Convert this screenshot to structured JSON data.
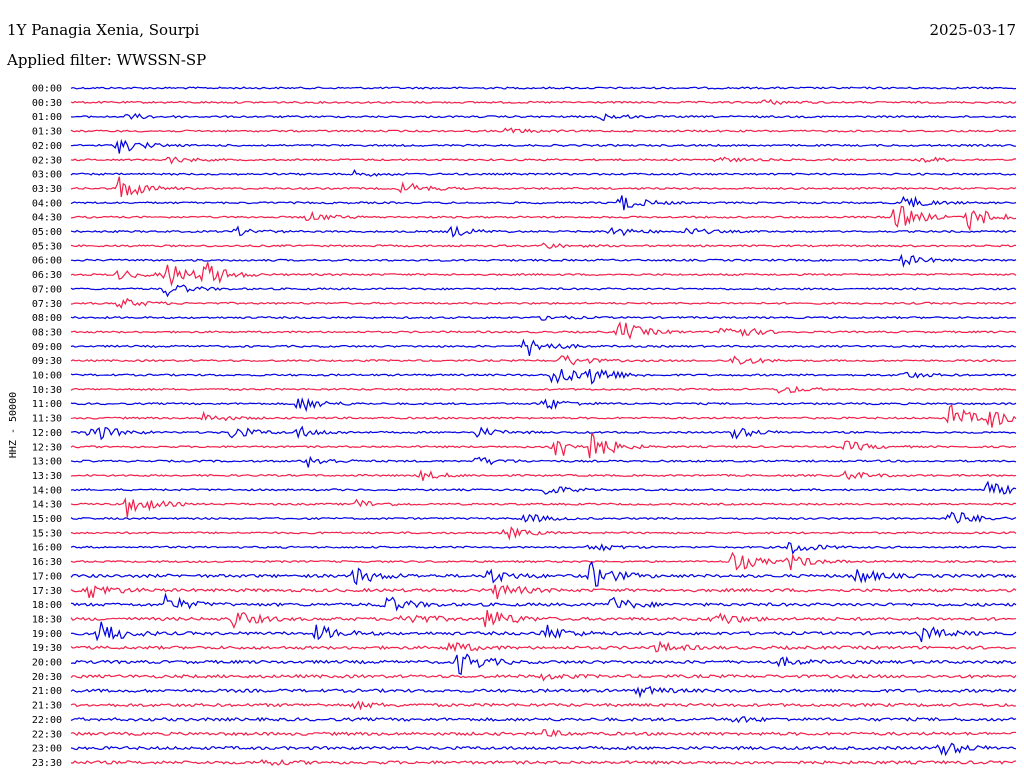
{
  "header": {
    "station": "1Y Panagia Xenia, Sourpi",
    "date": "2025-03-17",
    "filter": "Applied filter: WWSSN-SP"
  },
  "chart_data": {
    "type": "line",
    "ylabel": "HHZ - 50000",
    "colors": [
      "#0000e0",
      "#f0204a"
    ],
    "rows": [
      {
        "time": "00:00",
        "events": []
      },
      {
        "time": "00:30",
        "events": [
          {
            "t": 0.73,
            "a": 3
          }
        ]
      },
      {
        "time": "01:00",
        "events": [
          {
            "t": 0.06,
            "a": 3
          },
          {
            "t": 0.56,
            "a": 4
          }
        ]
      },
      {
        "time": "01:30",
        "events": [
          {
            "t": 0.46,
            "a": 3
          }
        ]
      },
      {
        "time": "02:00",
        "events": [
          {
            "t": 0.05,
            "a": 8
          }
        ]
      },
      {
        "time": "02:30",
        "events": [
          {
            "t": 0.1,
            "a": 4
          },
          {
            "t": 0.68,
            "a": 3
          },
          {
            "t": 0.9,
            "a": 3
          }
        ]
      },
      {
        "time": "03:00",
        "events": [
          {
            "t": 0.3,
            "a": 3
          }
        ]
      },
      {
        "time": "03:30",
        "events": [
          {
            "t": 0.05,
            "a": 14
          },
          {
            "t": 0.35,
            "a": 7
          }
        ]
      },
      {
        "time": "04:00",
        "events": [
          {
            "t": 0.58,
            "a": 9
          },
          {
            "t": 0.88,
            "a": 8
          }
        ]
      },
      {
        "time": "04:30",
        "events": [
          {
            "t": 0.25,
            "a": 5
          },
          {
            "t": 0.87,
            "a": 16
          },
          {
            "t": 0.95,
            "a": 14
          }
        ]
      },
      {
        "time": "05:00",
        "events": [
          {
            "t": 0.17,
            "a": 5
          },
          {
            "t": 0.4,
            "a": 6
          },
          {
            "t": 0.57,
            "a": 6
          },
          {
            "t": 0.65,
            "a": 4
          }
        ]
      },
      {
        "time": "05:30",
        "events": [
          {
            "t": 0.5,
            "a": 3
          }
        ]
      },
      {
        "time": "06:00",
        "events": [
          {
            "t": 0.88,
            "a": 6
          }
        ]
      },
      {
        "time": "06:30",
        "events": [
          {
            "t": 0.05,
            "a": 5
          },
          {
            "t": 0.1,
            "a": 14
          },
          {
            "t": 0.14,
            "a": 14
          }
        ]
      },
      {
        "time": "07:00",
        "events": [
          {
            "t": 0.1,
            "a": 8
          }
        ]
      },
      {
        "time": "07:30",
        "events": [
          {
            "t": 0.05,
            "a": 6
          }
        ]
      },
      {
        "time": "08:00",
        "events": [
          {
            "t": 0.5,
            "a": 3
          }
        ]
      },
      {
        "time": "08:30",
        "events": [
          {
            "t": 0.58,
            "a": 12
          },
          {
            "t": 0.69,
            "a": 12
          }
        ]
      },
      {
        "time": "09:00",
        "events": [
          {
            "t": 0.48,
            "a": 12
          }
        ]
      },
      {
        "time": "09:30",
        "events": [
          {
            "t": 0.52,
            "a": 7
          },
          {
            "t": 0.7,
            "a": 6
          }
        ]
      },
      {
        "time": "10:00",
        "events": [
          {
            "t": 0.51,
            "a": 13
          },
          {
            "t": 0.55,
            "a": 11
          },
          {
            "t": 0.88,
            "a": 4
          }
        ]
      },
      {
        "time": "10:30",
        "events": [
          {
            "t": 0.75,
            "a": 5
          }
        ]
      },
      {
        "time": "11:00",
        "events": [
          {
            "t": 0.24,
            "a": 9
          },
          {
            "t": 0.5,
            "a": 7
          }
        ]
      },
      {
        "time": "11:30",
        "events": [
          {
            "t": 0.14,
            "a": 5
          },
          {
            "t": 0.93,
            "a": 14
          },
          {
            "t": 0.97,
            "a": 10
          }
        ]
      },
      {
        "time": "12:00",
        "events": [
          {
            "t": 0.02,
            "a": 11
          },
          {
            "t": 0.17,
            "a": 7
          },
          {
            "t": 0.24,
            "a": 6
          },
          {
            "t": 0.43,
            "a": 5
          },
          {
            "t": 0.7,
            "a": 7
          }
        ]
      },
      {
        "time": "12:30",
        "events": [
          {
            "t": 0.51,
            "a": 16
          },
          {
            "t": 0.55,
            "a": 14
          },
          {
            "t": 0.82,
            "a": 6
          }
        ]
      },
      {
        "time": "13:00",
        "events": [
          {
            "t": 0.25,
            "a": 6
          },
          {
            "t": 0.43,
            "a": 5
          }
        ]
      },
      {
        "time": "13:30",
        "events": [
          {
            "t": 0.37,
            "a": 5
          },
          {
            "t": 0.82,
            "a": 5
          }
        ]
      },
      {
        "time": "14:00",
        "events": [
          {
            "t": 0.5,
            "a": 6
          },
          {
            "t": 0.97,
            "a": 8
          }
        ]
      },
      {
        "time": "14:30",
        "events": [
          {
            "t": 0.06,
            "a": 14
          },
          {
            "t": 0.3,
            "a": 5
          }
        ]
      },
      {
        "time": "15:00",
        "events": [
          {
            "t": 0.48,
            "a": 5
          },
          {
            "t": 0.93,
            "a": 10
          }
        ]
      },
      {
        "time": "15:30",
        "events": [
          {
            "t": 0.46,
            "a": 6
          }
        ]
      },
      {
        "time": "16:00",
        "events": [
          {
            "t": 0.55,
            "a": 5
          },
          {
            "t": 0.76,
            "a": 8
          }
        ]
      },
      {
        "time": "16:30",
        "events": [
          {
            "t": 0.7,
            "a": 12
          },
          {
            "t": 0.76,
            "a": 8
          }
        ]
      },
      {
        "time": "17:00",
        "events": [
          {
            "t": 0.3,
            "a": 9
          },
          {
            "t": 0.44,
            "a": 8
          },
          {
            "t": 0.55,
            "a": 14
          },
          {
            "t": 0.83,
            "a": 8
          }
        ]
      },
      {
        "time": "17:30",
        "events": [
          {
            "t": 0.02,
            "a": 8
          },
          {
            "t": 0.45,
            "a": 8
          }
        ]
      },
      {
        "time": "18:00",
        "events": [
          {
            "t": 0.1,
            "a": 9
          },
          {
            "t": 0.33,
            "a": 10
          },
          {
            "t": 0.57,
            "a": 8
          }
        ]
      },
      {
        "time": "18:30",
        "events": [
          {
            "t": 0.17,
            "a": 10
          },
          {
            "t": 0.35,
            "a": 8
          },
          {
            "t": 0.44,
            "a": 12
          },
          {
            "t": 0.68,
            "a": 8
          }
        ]
      },
      {
        "time": "19:00",
        "events": [
          {
            "t": 0.03,
            "a": 13
          },
          {
            "t": 0.26,
            "a": 8
          },
          {
            "t": 0.5,
            "a": 9
          },
          {
            "t": 0.9,
            "a": 8
          }
        ]
      },
      {
        "time": "19:30",
        "events": [
          {
            "t": 0.4,
            "a": 6
          },
          {
            "t": 0.62,
            "a": 5
          }
        ]
      },
      {
        "time": "20:00",
        "events": [
          {
            "t": 0.41,
            "a": 13
          },
          {
            "t": 0.75,
            "a": 4
          }
        ]
      },
      {
        "time": "20:30",
        "events": [
          {
            "t": 0.5,
            "a": 3
          }
        ]
      },
      {
        "time": "21:00",
        "events": [
          {
            "t": 0.6,
            "a": 5
          }
        ]
      },
      {
        "time": "21:30",
        "events": [
          {
            "t": 0.3,
            "a": 3
          }
        ]
      },
      {
        "time": "22:00",
        "events": [
          {
            "t": 0.7,
            "a": 3
          }
        ]
      },
      {
        "time": "22:30",
        "events": [
          {
            "t": 0.5,
            "a": 3
          }
        ]
      },
      {
        "time": "23:00",
        "events": [
          {
            "t": 0.92,
            "a": 8
          }
        ]
      },
      {
        "time": "23:30",
        "events": [
          {
            "t": 0.2,
            "a": 3
          }
        ]
      }
    ]
  }
}
